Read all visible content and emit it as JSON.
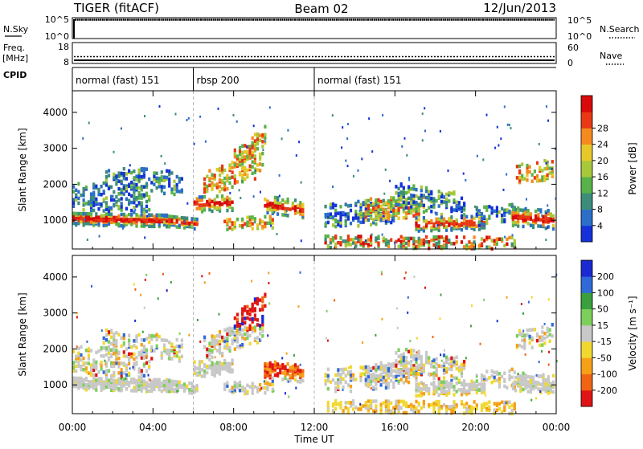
{
  "header": {
    "title_left": "TIGER (fitACF)",
    "title_center": "Beam 02",
    "title_right": "12/Jun/2013"
  },
  "strips": {
    "nsky": {
      "label": "N.Sky",
      "tick_top": "10^5",
      "tick_bottom": "10^0",
      "right_tick_top": "10^5",
      "right_tick_bottom": "10^0",
      "right_label": "N.Search"
    },
    "freq": {
      "label_top": "Freq.",
      "label_bottom": "[MHz]",
      "tick_top": "18",
      "tick_bottom": "8",
      "right_tick_top": "60",
      "right_tick_bottom": "0",
      "right_label": "Nave"
    },
    "cpid": {
      "label": "CPID",
      "segments": [
        {
          "text": "normal (fast) 151",
          "start_hour": 0
        },
        {
          "text": "rbsp 200",
          "start_hour": 6
        },
        {
          "text": "normal (fast) 151",
          "start_hour": 12
        }
      ]
    }
  },
  "chart_data": [
    {
      "type": "heatmap",
      "quantity": "power",
      "ylabel": "Slant Range [km]",
      "xlim_hours": [
        0,
        24
      ],
      "ylim": [
        200,
        4600
      ],
      "yticks": [
        1000,
        2000,
        3000,
        4000
      ],
      "colorbar": {
        "label": "Power [dB]",
        "ticks": [
          "4",
          "8",
          "12",
          "16",
          "20",
          "24",
          "28"
        ],
        "colors": [
          "#1432d8",
          "#2b6fc8",
          "#3c8c7a",
          "#58b24a",
          "#a8c83c",
          "#e6c82a",
          "#f58a1e",
          "#e83814",
          "#d80a0a"
        ]
      }
    },
    {
      "type": "heatmap",
      "quantity": "velocity",
      "ylabel": "Slant Range [km]",
      "xlabel": "Time UT",
      "xlim_hours": [
        0,
        24
      ],
      "ylim": [
        200,
        4600
      ],
      "yticks": [
        1000,
        2000,
        3000,
        4000
      ],
      "xticks": [
        "00:00",
        "04:00",
        "08:00",
        "12:00",
        "16:00",
        "20:00",
        "00:00"
      ],
      "colorbar": {
        "label": "Velocity [m s⁻¹]",
        "ticks": [
          "200",
          "100",
          "50",
          "15",
          "-15",
          "-50",
          "-100",
          "-200"
        ],
        "colors": [
          "#1a2ad0",
          "#2f6ad8",
          "#3aa03c",
          "#7cd05a",
          "#c8c8c8",
          "#f0d830",
          "#f5a018",
          "#f06414",
          "#e01414"
        ]
      }
    }
  ]
}
